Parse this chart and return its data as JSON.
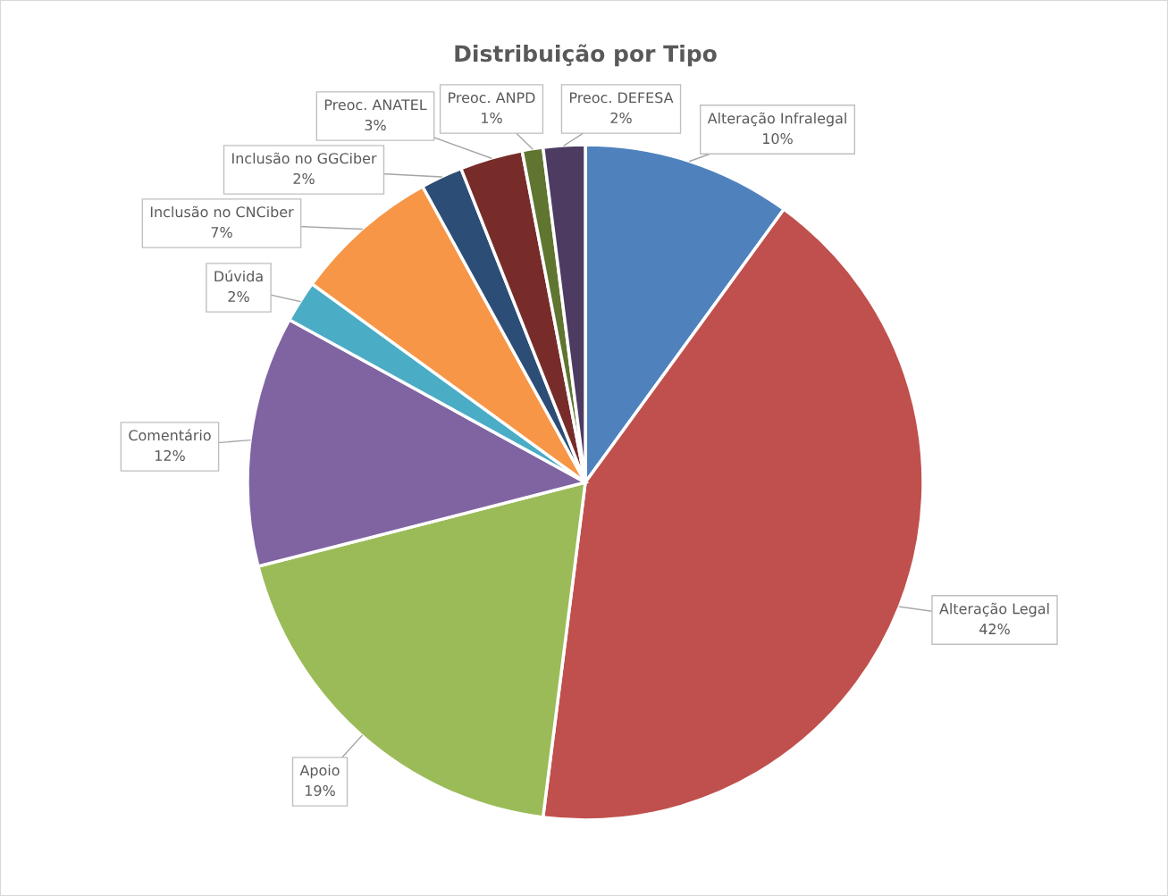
{
  "chart_data": {
    "type": "pie",
    "title": "Distribuição por Tipo",
    "categories": [
      "Alteração Infralegal",
      "Alteração Legal",
      "Apoio",
      "Comentário",
      "Dúvida",
      "Inclusão no CNCiber",
      "Inclusão no GGCiber",
      "Preoc. ANATEL",
      "Preoc. ANPD",
      "Preoc. DEFESA"
    ],
    "values": [
      10,
      42,
      19,
      12,
      2,
      7,
      2,
      3,
      1,
      2
    ],
    "value_labels": [
      "10%",
      "42%",
      "19%",
      "12%",
      "2%",
      "7%",
      "2%",
      "3%",
      "1%",
      "2%"
    ],
    "colors": [
      "#4f81bd",
      "#c0504d",
      "#9bbb59",
      "#8064a2",
      "#4bacc6",
      "#f79646",
      "#2c4d75",
      "#772c2a",
      "#5f7530",
      "#4d3b62"
    ]
  }
}
